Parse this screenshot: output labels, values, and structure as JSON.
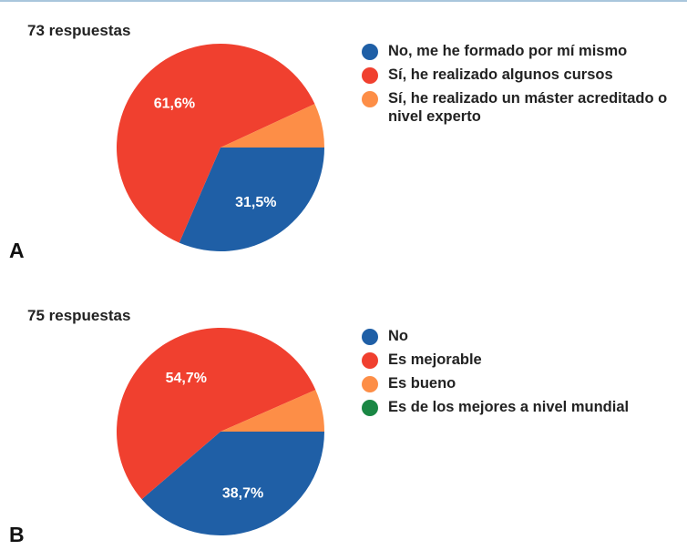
{
  "colors": {
    "blue": "#1f5fa6",
    "red": "#f0402f",
    "orange": "#fd8e47",
    "green": "#1a8744"
  },
  "chart_data": [
    {
      "type": "pie",
      "panel_label": "A",
      "subtitle": "73 respuestas",
      "slices": [
        {
          "label": "No, me he formado por mí mismo",
          "value": 31.5,
          "color": "#1f5fa6",
          "data_label": "31,5%"
        },
        {
          "label": "Sí, he realizado algunos cursos",
          "value": 61.6,
          "color": "#f0402f",
          "data_label": "61,6%"
        },
        {
          "label": "Sí, he realizado un máster acreditado o nivel experto",
          "value": 6.9,
          "color": "#fd8e47",
          "data_label": ""
        }
      ],
      "legend_position": "right"
    },
    {
      "type": "pie",
      "panel_label": "B",
      "subtitle": "75 respuestas",
      "slices": [
        {
          "label": "No",
          "value": 38.7,
          "color": "#1f5fa6",
          "data_label": "38,7%"
        },
        {
          "label": "Es mejorable",
          "value": 54.7,
          "color": "#f0402f",
          "data_label": "54,7%"
        },
        {
          "label": "Es bueno",
          "value": 6.6,
          "color": "#fd8e47",
          "data_label": ""
        },
        {
          "label": "Es de los mejores a nivel mundial",
          "value": 0,
          "color": "#1a8744",
          "data_label": ""
        }
      ],
      "legend_position": "right"
    }
  ]
}
